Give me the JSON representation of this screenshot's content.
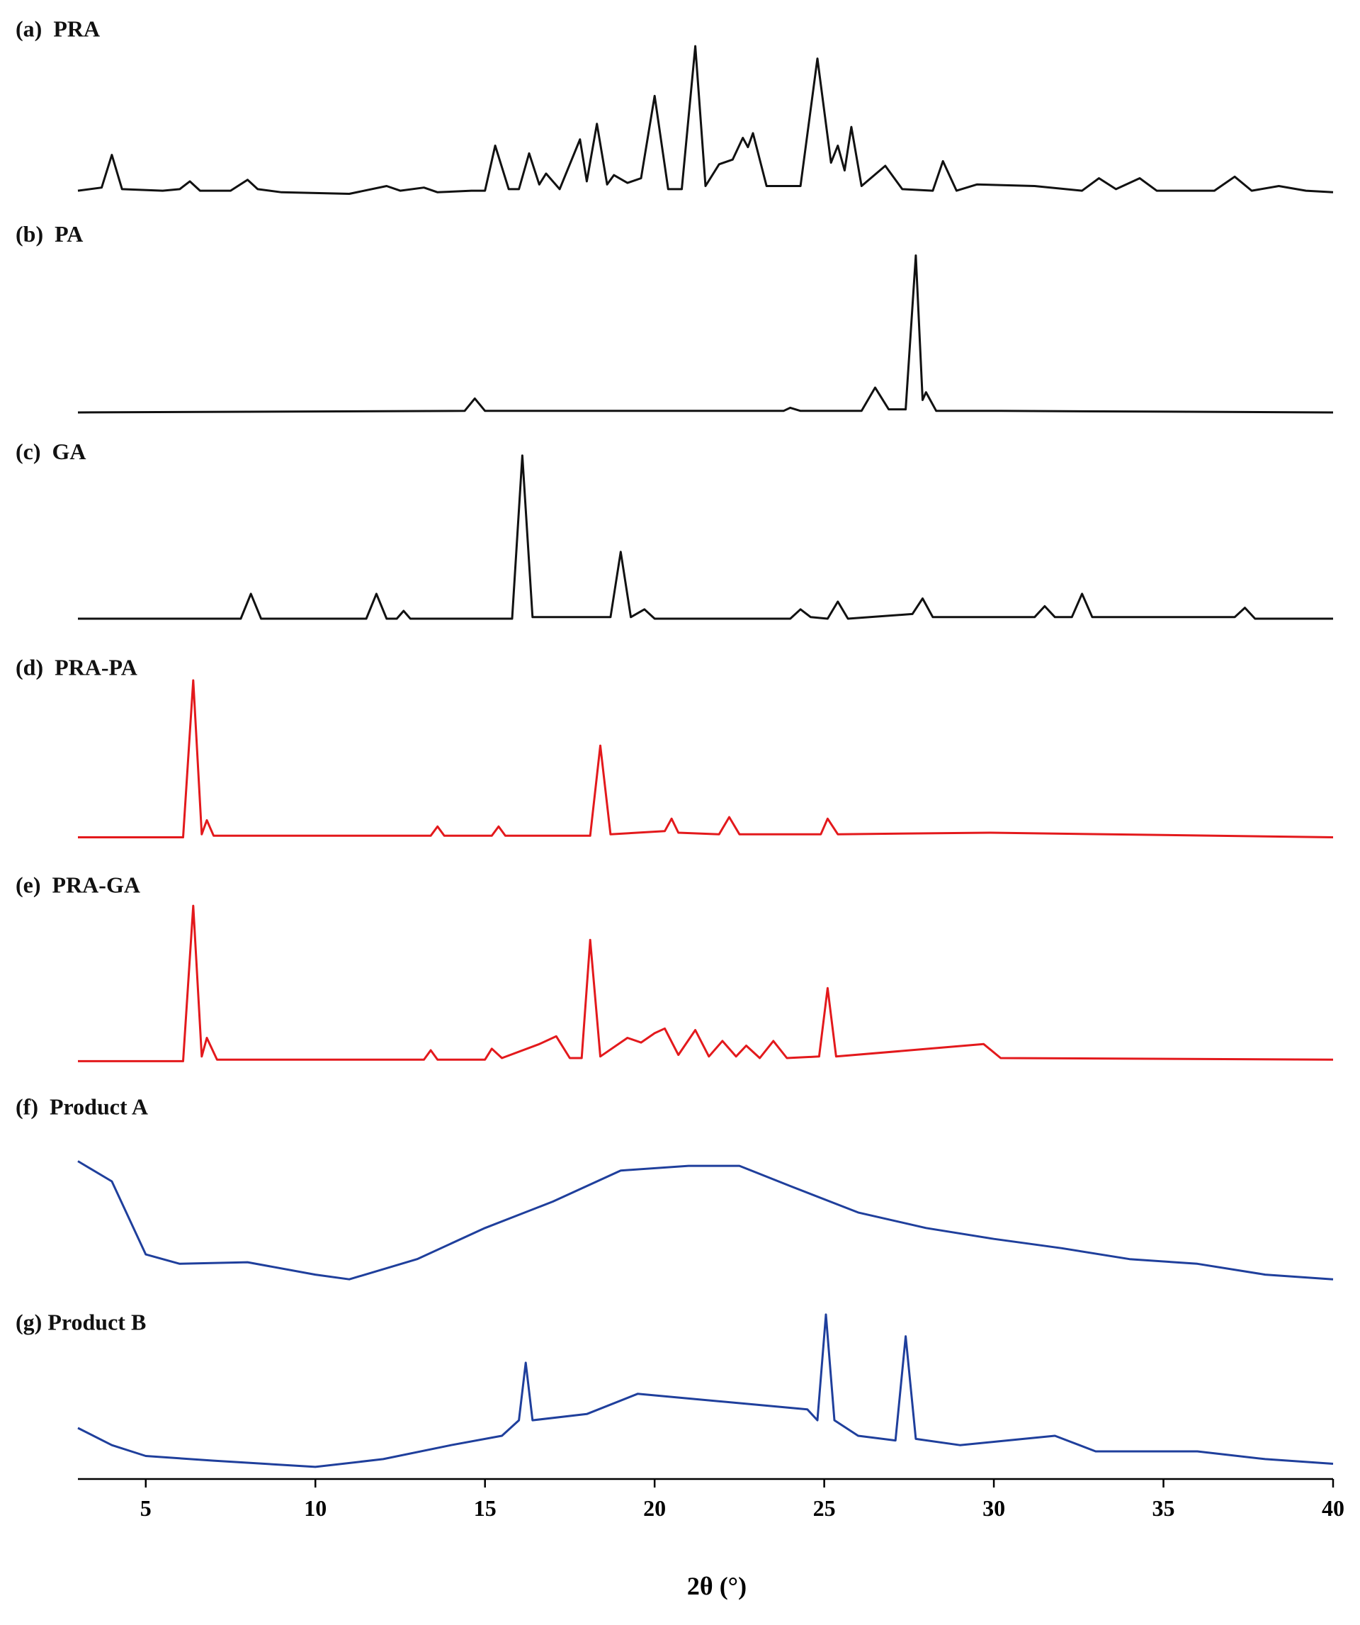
{
  "chart_data": {
    "type": "line",
    "x_label": "2θ (°)",
    "xlim": [
      3,
      40
    ],
    "xticks": [
      5,
      10,
      15,
      20,
      25,
      30,
      35,
      40
    ],
    "series": [
      {
        "name": "(a)  PRA",
        "color": "#111111",
        "x": [
          3,
          3.7,
          4.0,
          4.3,
          5.5,
          6.0,
          6.3,
          6.6,
          7.5,
          8.0,
          8.3,
          9,
          11,
          12.1,
          12.5,
          13.2,
          13.6,
          14.6,
          15.0,
          15.3,
          15.7,
          16.0,
          16.3,
          16.6,
          16.8,
          17.2,
          17.8,
          18.0,
          18.3,
          18.6,
          18.8,
          19.2,
          19.6,
          20.0,
          20.4,
          20.8,
          21.2,
          21.5,
          21.9,
          22.3,
          22.6,
          22.75,
          22.9,
          23.3,
          24.3,
          24.8,
          25.2,
          25.4,
          25.6,
          25.8,
          26.1,
          26.8,
          27.3,
          28.2,
          28.5,
          28.9,
          29.5,
          31.2,
          32.6,
          33.1,
          33.6,
          34.3,
          34.8,
          36.5,
          37.1,
          37.6,
          38.4,
          39.2,
          40
        ],
        "values": [
          2,
          4,
          25,
          3,
          2,
          3,
          8,
          2,
          2,
          9,
          3,
          1,
          0,
          5,
          2,
          4,
          1,
          2,
          2,
          31,
          3,
          3,
          26,
          6,
          13,
          3,
          35,
          8,
          45,
          6,
          12,
          7,
          10,
          63,
          3,
          3,
          95,
          5,
          19,
          22,
          36,
          30,
          39,
          5,
          5,
          87,
          20,
          31,
          15,
          43,
          5,
          18,
          3,
          2,
          21,
          2,
          6,
          5,
          2,
          10,
          3,
          10,
          2,
          2,
          11,
          2,
          5,
          2,
          1
        ]
      },
      {
        "name": "(b)  PA",
        "color": "#111111",
        "x": [
          3,
          14.4,
          14.7,
          15.0,
          23.8,
          24.0,
          24.3,
          26.1,
          26.5,
          26.9,
          27.4,
          27.7,
          27.9,
          28.0,
          28.3,
          30.2,
          40
        ],
        "values": [
          0,
          1,
          9,
          1,
          1,
          3,
          1,
          1,
          16,
          2,
          2,
          101,
          8,
          13,
          1,
          1,
          0
        ]
      },
      {
        "name": "(c)  GA",
        "color": "#111111",
        "x": [
          3,
          7.8,
          8.1,
          8.4,
          11.5,
          11.8,
          12.1,
          12.4,
          12.6,
          12.8,
          15.8,
          16.1,
          16.4,
          18.7,
          19.0,
          19.3,
          19.7,
          20.0,
          24.0,
          24.3,
          24.6,
          25.1,
          25.4,
          25.7,
          27.6,
          27.9,
          28.2,
          31.2,
          31.5,
          31.8,
          32.3,
          32.6,
          32.9,
          37.1,
          37.4,
          37.7,
          40
        ],
        "values": [
          0,
          0,
          16,
          0,
          0,
          16,
          0,
          0,
          5,
          0,
          0,
          105,
          1,
          1,
          43,
          1,
          6,
          0,
          0,
          6,
          1,
          0,
          11,
          0,
          3,
          13,
          1,
          1,
          8,
          1,
          1,
          16,
          1,
          1,
          7,
          0,
          0
        ]
      },
      {
        "name": "(d)  PRA-PA",
        "color": "#e3191c",
        "x": [
          3,
          6.1,
          6.4,
          6.65,
          6.8,
          7.0,
          13.4,
          13.6,
          13.8,
          15.2,
          15.4,
          15.6,
          18.1,
          18.4,
          18.7,
          20.3,
          20.5,
          20.7,
          21.9,
          22.2,
          22.5,
          24.9,
          25.1,
          25.4,
          29.9,
          40
        ],
        "values": [
          0,
          0,
          101,
          2,
          11,
          1,
          1,
          7,
          1,
          1,
          7,
          1,
          1,
          59,
          2,
          4,
          12,
          3,
          2,
          13,
          2,
          2,
          12,
          2,
          3,
          0
        ]
      },
      {
        "name": "(e)  PRA-GA",
        "color": "#e3191c",
        "x": [
          3,
          6.1,
          6.4,
          6.65,
          6.8,
          7.1,
          13.2,
          13.4,
          13.6,
          15.0,
          15.2,
          15.5,
          16.6,
          17.1,
          17.5,
          17.85,
          18.1,
          18.4,
          19.2,
          19.6,
          20.0,
          20.3,
          20.7,
          21.2,
          21.6,
          22.0,
          22.4,
          22.7,
          23.1,
          23.5,
          23.9,
          24.85,
          25.1,
          25.35,
          29.7,
          30.2,
          40
        ],
        "values": [
          0,
          0,
          100,
          3,
          15,
          1,
          1,
          7,
          1,
          1,
          8,
          2,
          11,
          16,
          2,
          2,
          78,
          3,
          15,
          12,
          18,
          21,
          4,
          20,
          3,
          13,
          3,
          10,
          2,
          13,
          2,
          3,
          47,
          3,
          11,
          2,
          1
        ]
      },
      {
        "name": "(f)  Product A",
        "color": "#1f3f9c",
        "x": [
          3,
          4,
          5,
          6,
          8,
          10,
          11,
          13,
          15,
          17,
          19,
          21,
          22.5,
          24,
          26,
          28,
          30,
          32,
          34,
          36,
          38,
          40
        ],
        "values": [
          83,
          70,
          23,
          17,
          18,
          10,
          7,
          20,
          40,
          57,
          77,
          80,
          80,
          67,
          50,
          40,
          33,
          27,
          20,
          17,
          10,
          7
        ]
      },
      {
        "name": "(g) Product B",
        "color": "#1f3f9c",
        "x": [
          3,
          4,
          5,
          7,
          10,
          12,
          14,
          15.5,
          16.0,
          16.2,
          16.4,
          18,
          19.5,
          21,
          23,
          24.5,
          24.8,
          25.05,
          25.3,
          26,
          27.1,
          27.4,
          27.7,
          29,
          31.8,
          33,
          36,
          38,
          40
        ],
        "values": [
          28,
          17,
          10,
          7,
          3,
          8,
          17,
          23,
          33,
          70,
          33,
          37,
          50,
          47,
          43,
          40,
          33,
          101,
          33,
          23,
          20,
          87,
          21,
          17,
          23,
          13,
          13,
          8,
          5
        ]
      }
    ]
  }
}
